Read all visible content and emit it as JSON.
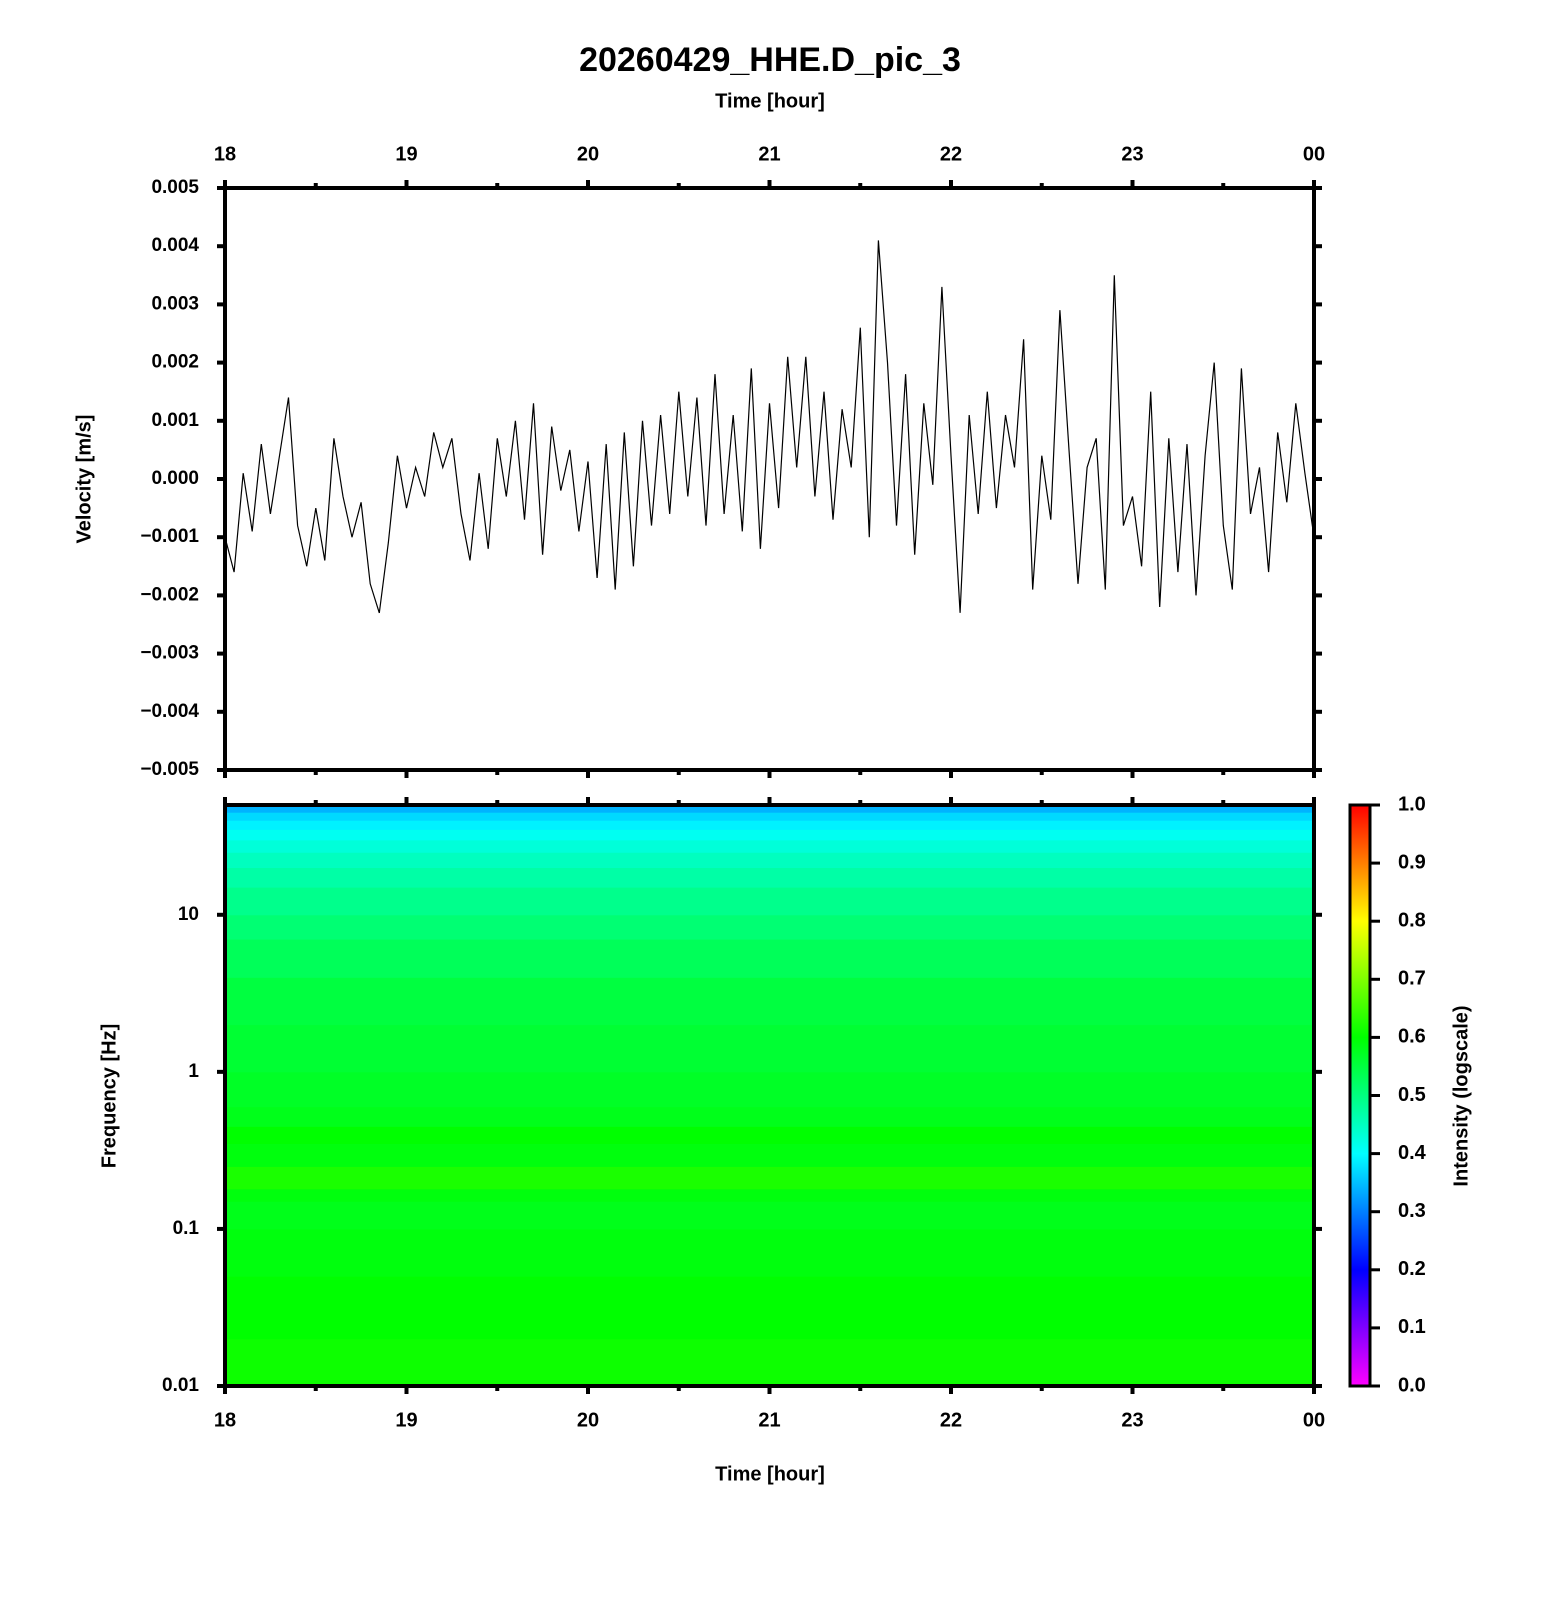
{
  "chart_data": [
    {
      "type": "line",
      "title": "20260429_HHE.D_pic_3",
      "xlabel": "Time [hour]",
      "ylabel": "Velocity [m/s]",
      "color": "#000000",
      "xlim": [
        18,
        24
      ],
      "xticks": [
        18,
        19,
        20,
        21,
        22,
        23,
        {
          "value": 24,
          "label": "00"
        }
      ],
      "xminorticks": [
        18.5,
        19.5,
        20.5,
        21.5,
        22.5,
        23.5
      ],
      "ylim": [
        -0.005,
        0.005
      ],
      "yticks": [
        {
          "value": 0.005,
          "label": "0.005"
        },
        {
          "value": 0.004,
          "label": "0.004"
        },
        {
          "value": 0.003,
          "label": "0.003"
        },
        {
          "value": 0.002,
          "label": "0.002"
        },
        {
          "value": 0.001,
          "label": "0.001"
        },
        {
          "value": 0,
          "label": "0.000"
        },
        {
          "value": -0.001,
          "label": "−0.001"
        },
        {
          "value": -0.002,
          "label": "−0.002"
        },
        {
          "value": -0.003,
          "label": "−0.003"
        },
        {
          "value": -0.004,
          "label": "−0.004"
        },
        {
          "value": -0.005,
          "label": "−0.005"
        }
      ],
      "x": [
        18.0,
        18.05,
        18.1,
        18.15,
        18.2,
        18.25,
        18.3,
        18.35,
        18.4,
        18.45,
        18.5,
        18.55,
        18.6,
        18.65,
        18.7,
        18.75,
        18.8,
        18.85,
        18.9,
        18.95,
        19.0,
        19.05,
        19.1,
        19.15,
        19.2,
        19.25,
        19.3,
        19.35,
        19.4,
        19.45,
        19.5,
        19.55,
        19.6,
        19.65,
        19.7,
        19.75,
        19.8,
        19.85,
        19.9,
        19.95,
        20.0,
        20.05,
        20.1,
        20.15,
        20.2,
        20.25,
        20.3,
        20.35,
        20.4,
        20.45,
        20.5,
        20.55,
        20.6,
        20.65,
        20.7,
        20.75,
        20.8,
        20.85,
        20.9,
        20.95,
        21.0,
        21.05,
        21.1,
        21.15,
        21.2,
        21.25,
        21.3,
        21.35,
        21.4,
        21.45,
        21.5,
        21.55,
        21.6,
        21.65,
        21.7,
        21.75,
        21.8,
        21.85,
        21.9,
        21.95,
        22.0,
        22.05,
        22.1,
        22.15,
        22.2,
        22.25,
        22.3,
        22.35,
        22.4,
        22.45,
        22.5,
        22.55,
        22.6,
        22.65,
        22.7,
        22.75,
        22.8,
        22.85,
        22.9,
        22.95,
        23.0,
        23.05,
        23.1,
        23.15,
        23.2,
        23.25,
        23.3,
        23.35,
        23.4,
        23.45,
        23.5,
        23.55,
        23.6,
        23.65,
        23.7,
        23.75,
        23.8,
        23.85,
        23.9,
        23.95,
        24.0
      ],
      "values": [
        -0.001,
        -0.0016,
        0.0001,
        -0.0009,
        0.0006,
        -0.0006,
        0.0004,
        0.0014,
        -0.0008,
        -0.0015,
        -0.0005,
        -0.0014,
        0.0007,
        -0.0003,
        -0.001,
        -0.0004,
        -0.0018,
        -0.0023,
        -0.0011,
        0.0004,
        -0.0005,
        0.0002,
        -0.0003,
        0.0008,
        0.0002,
        0.0007,
        -0.0006,
        -0.0014,
        0.0001,
        -0.0012,
        0.0007,
        -0.0003,
        0.001,
        -0.0007,
        0.0013,
        -0.0013,
        0.0009,
        -0.0002,
        0.0005,
        -0.0009,
        0.0003,
        -0.0017,
        0.0006,
        -0.0019,
        0.0008,
        -0.0015,
        0.001,
        -0.0008,
        0.0011,
        -0.0006,
        0.0015,
        -0.0003,
        0.0014,
        -0.0008,
        0.0018,
        -0.0006,
        0.0011,
        -0.0009,
        0.0019,
        -0.0012,
        0.0013,
        -0.0005,
        0.0021,
        0.0002,
        0.0021,
        -0.0003,
        0.0015,
        -0.0007,
        0.0012,
        0.0002,
        0.0026,
        -0.001,
        0.0041,
        0.002,
        -0.0008,
        0.0018,
        -0.0013,
        0.0013,
        -0.0001,
        0.0033,
        0.0004,
        -0.0023,
        0.0011,
        -0.0006,
        0.0015,
        -0.0005,
        0.0011,
        0.0002,
        0.0024,
        -0.0019,
        0.0004,
        -0.0007,
        0.0029,
        0.0005,
        -0.0018,
        0.0002,
        0.0007,
        -0.0019,
        0.0035,
        -0.0008,
        -0.0003,
        -0.0015,
        0.0015,
        -0.0022,
        0.0007,
        -0.0016,
        0.0006,
        -0.002,
        0.0004,
        0.002,
        -0.0008,
        -0.0019,
        0.0019,
        -0.0006,
        0.0002,
        -0.0016,
        0.0008,
        -0.0004,
        0.0013,
        0.0001,
        -0.001
      ]
    },
    {
      "type": "heatmap",
      "xlabel": "Time [hour]",
      "ylabel": "Frequency [Hz]",
      "log_y": true,
      "xlim": [
        18,
        24
      ],
      "xticks": [
        18,
        19,
        20,
        21,
        22,
        23,
        {
          "value": 24,
          "label": "00"
        }
      ],
      "xminorticks": [
        18.5,
        19.5,
        20.5,
        21.5,
        22.5,
        23.5
      ],
      "ylim": [
        0.01,
        50
      ],
      "yticks": [
        0.01,
        0.1,
        1,
        10
      ],
      "ybins": [
        0.01,
        0.02,
        0.05,
        0.1,
        0.15,
        0.18,
        0.25,
        0.35,
        0.45,
        0.6,
        1,
        2,
        4,
        7,
        10,
        15,
        20,
        25,
        30,
        35,
        40,
        45,
        50
      ],
      "values": [
        0.61,
        0.6,
        0.59,
        0.58,
        0.59,
        0.62,
        0.59,
        0.6,
        0.58,
        0.57,
        0.56,
        0.55,
        0.53,
        0.51,
        0.49,
        0.47,
        0.45,
        0.43,
        0.41,
        0.39,
        0.37,
        0.34
      ],
      "colorbar": {
        "label": "Intensity (logscale)",
        "lim": [
          0,
          1
        ],
        "ticks": [
          {
            "value": 0,
            "label": "0.0"
          },
          0.1,
          0.2,
          0.3,
          0.4,
          0.5,
          0.6,
          0.7,
          0.8,
          0.9,
          {
            "value": 1,
            "label": "1.0"
          }
        ],
        "colors": [
          "#ff00ff",
          "#0000ff",
          "#00ffff",
          "#00ff00",
          "#ffff00",
          "#ff0000"
        ]
      }
    }
  ]
}
